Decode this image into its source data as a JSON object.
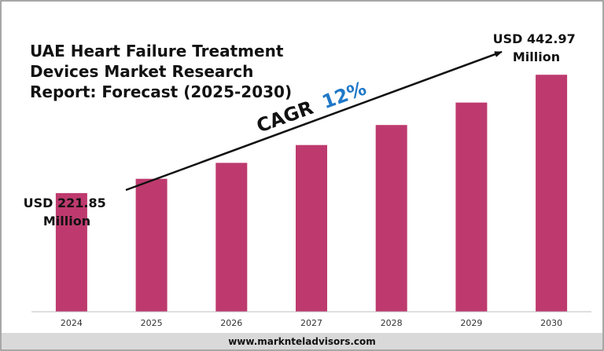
{
  "chart_data": {
    "type": "bar",
    "title": "UAE Heart Failure Treatment Devices Market Research Report: Forecast (2025-2030)",
    "title_lines": [
      "UAE Heart Failure Treatment",
      "Devices Market Research",
      "Report: Forecast (2025-2030)"
    ],
    "categories": [
      "2024",
      "2025",
      "2026",
      "2027",
      "2028",
      "2029",
      "2030"
    ],
    "values": [
      221.85,
      248.5,
      278.3,
      311.7,
      349.1,
      391.0,
      442.97
    ],
    "ylim": [
      0,
      480
    ],
    "grid": false,
    "bar_color": "#BE3A6E",
    "annotations": {
      "start_label_lines": [
        "USD 221.85",
        "Million"
      ],
      "end_label_lines": [
        "USD 442.97",
        "Million"
      ],
      "cagr_label": "CAGR",
      "cagr_value": "12%",
      "cagr_value_color": "#1F78C8"
    }
  },
  "footer": {
    "website": "www.marknteladvisors.com"
  }
}
